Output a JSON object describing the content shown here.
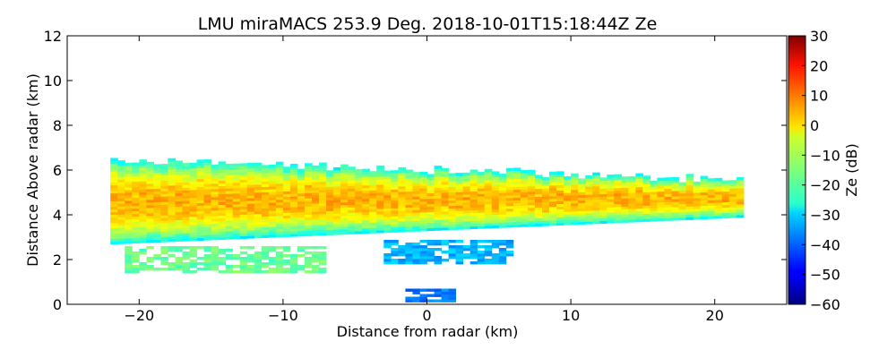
{
  "chart_data": {
    "type": "heatmap",
    "title": "LMU miraMACS 253.9 Deg. 2018-10-01T15:18:44Z  Ze",
    "xlabel": "Distance from radar (km)",
    "ylabel": "Distance Above radar  (km)",
    "xlim": [
      -25,
      25
    ],
    "ylim": [
      0,
      12
    ],
    "xticks": [
      -20,
      -10,
      0,
      10,
      20
    ],
    "xtick_labels": [
      "−20",
      "−10",
      "0",
      "10",
      "20"
    ],
    "yticks": [
      0,
      2,
      4,
      6,
      8,
      10,
      12
    ],
    "ytick_labels": [
      "0",
      "2",
      "4",
      "6",
      "8",
      "10",
      "12"
    ],
    "colorbar": {
      "label": "Ze (dB)",
      "range": [
        -60,
        30
      ],
      "colormap": "jet",
      "ticks": [
        30,
        20,
        10,
        0,
        -10,
        -20,
        -30,
        -40,
        -50,
        -60
      ],
      "tick_labels": [
        "30",
        "20",
        "10",
        "0",
        "−10",
        "−20",
        "−30",
        "−40",
        "−50",
        "−60"
      ]
    },
    "echo_layer": {
      "x_range_km": [
        -22,
        22
      ],
      "base_left_km": 2.7,
      "base_right_km": 3.9,
      "top_left_km": 6.4,
      "top_right_km": 5.5,
      "core_height_km": 4.6,
      "core_ze_db": 3,
      "edge_ze_db": -25,
      "base_patches": [
        {
          "x": [
            -21,
            -7
          ],
          "y": [
            1.4,
            2.6
          ],
          "ze_db": -17
        },
        {
          "x": [
            -3,
            6
          ],
          "y": [
            1.8,
            2.8
          ],
          "ze_db": -33
        },
        {
          "x": [
            -1.5,
            2
          ],
          "y": [
            0.1,
            0.6
          ],
          "ze_db": -38
        }
      ]
    }
  }
}
